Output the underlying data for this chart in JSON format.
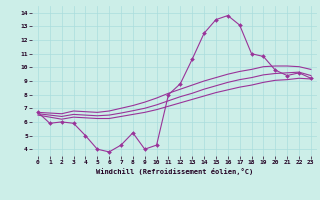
{
  "title": "",
  "xlabel": "Windchill (Refroidissement éolien,°C)",
  "background_color": "#cceee8",
  "grid_color": "#aadddd",
  "line_color": "#993399",
  "xlim": [
    -0.5,
    23.5
  ],
  "ylim": [
    3.5,
    14.5
  ],
  "xticks": [
    0,
    1,
    2,
    3,
    4,
    5,
    6,
    7,
    8,
    9,
    10,
    11,
    12,
    13,
    14,
    15,
    16,
    17,
    18,
    19,
    20,
    21,
    22,
    23
  ],
  "yticks": [
    4,
    5,
    6,
    7,
    8,
    9,
    10,
    11,
    12,
    13,
    14
  ],
  "main_series": [
    6.7,
    5.9,
    6.0,
    5.9,
    5.0,
    4.0,
    3.8,
    4.3,
    5.2,
    4.0,
    4.3,
    8.0,
    8.8,
    10.6,
    12.5,
    13.5,
    13.8,
    13.1,
    11.0,
    10.8,
    9.8,
    9.4,
    9.6,
    9.2
  ],
  "smooth1": [
    6.5,
    6.35,
    6.2,
    6.35,
    6.3,
    6.25,
    6.25,
    6.4,
    6.55,
    6.7,
    6.9,
    7.15,
    7.4,
    7.65,
    7.9,
    8.15,
    8.35,
    8.55,
    8.7,
    8.9,
    9.05,
    9.1,
    9.2,
    9.15
  ],
  "smooth2": [
    6.6,
    6.5,
    6.4,
    6.55,
    6.5,
    6.45,
    6.5,
    6.65,
    6.82,
    7.0,
    7.25,
    7.55,
    7.85,
    8.1,
    8.4,
    8.65,
    8.9,
    9.1,
    9.25,
    9.45,
    9.55,
    9.6,
    9.65,
    9.4
  ],
  "smooth3": [
    6.7,
    6.65,
    6.6,
    6.8,
    6.75,
    6.7,
    6.8,
    7.0,
    7.2,
    7.45,
    7.75,
    8.1,
    8.4,
    8.7,
    9.0,
    9.25,
    9.5,
    9.7,
    9.85,
    10.05,
    10.1,
    10.1,
    10.05,
    9.85
  ]
}
